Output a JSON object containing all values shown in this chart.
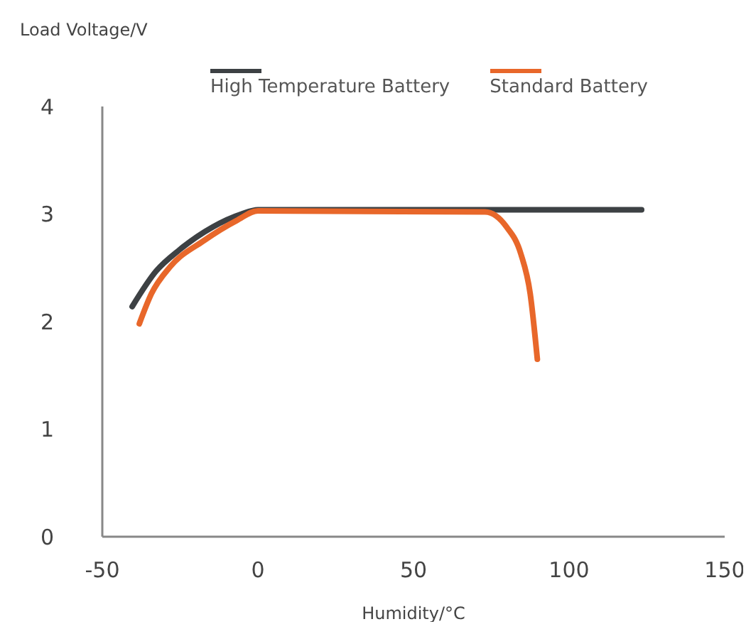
{
  "chart_data": {
    "type": "line",
    "xlabel": "Humidity/°C",
    "ylabel": "Load Voltage/V",
    "xlim": [
      -50,
      150
    ],
    "xticks": [
      -50,
      0,
      50,
      100,
      150
    ],
    "ylim": [
      0,
      4
    ],
    "yticks": [
      0,
      1,
      2,
      3,
      4
    ],
    "grid": false,
    "legend": "top",
    "marker": "none",
    "line_style": "solid",
    "series": [
      {
        "name": "High Temperature Battery",
        "color": "#3d4144",
        "x": [
          -40.4,
          -32.7,
          -25.1,
          -14.5,
          -5.3,
          0,
          123.3
        ],
        "values": [
          2.14,
          2.47,
          2.67,
          2.88,
          3.0,
          3.04,
          3.04
        ]
      },
      {
        "name": "Standard Battery",
        "color": "#e8672a",
        "x": [
          -38.1,
          -34.2,
          -28.2,
          -17.5,
          -6.8,
          0,
          73,
          79.9,
          84.5,
          87.5,
          89.8
        ],
        "values": [
          1.98,
          2.26,
          2.51,
          2.75,
          2.94,
          3.03,
          3.02,
          2.88,
          2.63,
          2.26,
          1.65
        ]
      }
    ]
  }
}
